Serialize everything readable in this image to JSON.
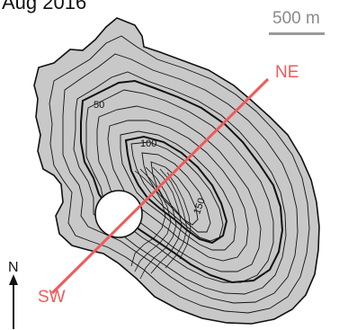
{
  "map": {
    "date_label": "Aug 2016",
    "scale_bar_label": "500 m",
    "profile_line": {
      "start_label": "SW",
      "end_label": "NE",
      "color": "#f05a5a"
    },
    "north_arrow_label": "N",
    "contour_labels": [
      "50",
      "100",
      "150"
    ],
    "island_fill_color": "#c8c8c8",
    "contour_color": "#111111",
    "crater_fill_color": "#ffffff"
  }
}
